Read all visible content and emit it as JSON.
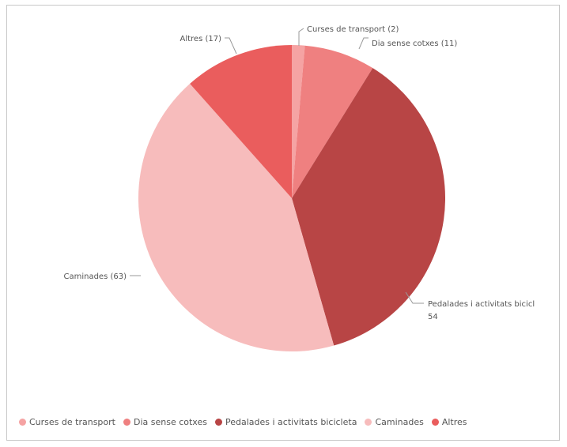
{
  "chart_data": {
    "type": "pie",
    "categories": [
      "Curses de transport",
      "Dia sense cotxes",
      "Pedalades i activitats bicicleta",
      "Caminades",
      "Altres"
    ],
    "values": [
      2,
      11,
      54,
      63,
      17
    ],
    "colors": [
      "#f5a3a3",
      "#ef8080",
      "#b84545",
      "#f7bcbc",
      "#ea5d5d"
    ],
    "data_labels": [
      "Curses de transport (2)",
      "Dia sense cotxes (11)",
      "Pedalades i activitats bicicl",
      "Caminades (63)",
      "Altres (17)"
    ],
    "data_label_extra": "54",
    "legend_position": "bottom-left",
    "title": ""
  }
}
